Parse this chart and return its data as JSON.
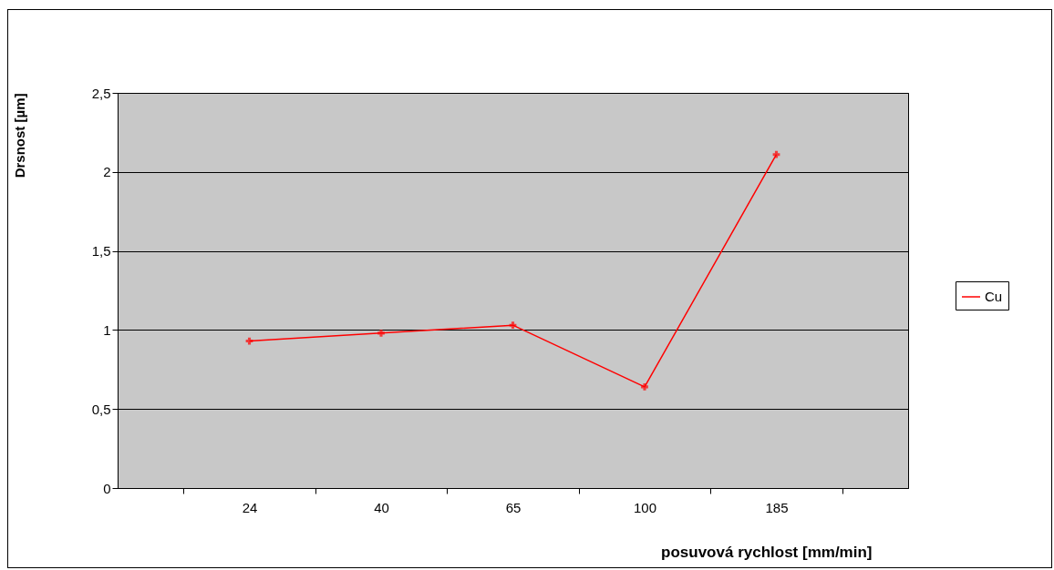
{
  "chart_data": {
    "type": "line",
    "xlabel": "posuvová rychlost [mm/min]",
    "ylabel": "Drsnost [µm]",
    "categories": [
      "24",
      "40",
      "65",
      "100",
      "185"
    ],
    "series": [
      {
        "name": "Cu",
        "color": "#ff0000",
        "values": [
          0.93,
          0.98,
          1.03,
          0.64,
          2.11
        ]
      }
    ],
    "ylim": [
      0,
      2.5
    ],
    "yticks": [
      0,
      {
        "value": 0.5,
        "label": "0,5"
      },
      1,
      {
        "value": 1.5,
        "label": "1,5"
      },
      2,
      {
        "value": 2.5,
        "label": "2,5"
      }
    ],
    "grid": "y",
    "legend": "right",
    "marker": "cross",
    "line_style": "solid"
  }
}
